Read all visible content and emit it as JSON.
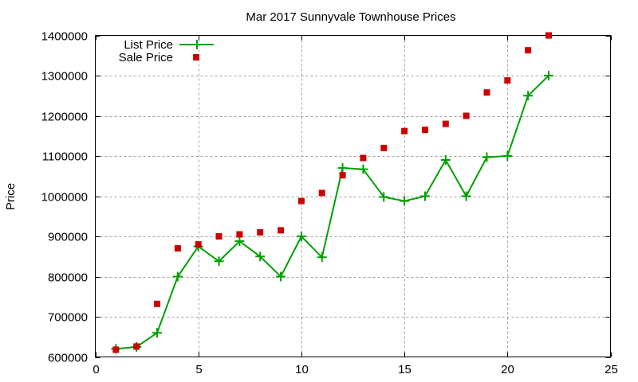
{
  "chart_data": {
    "type": "line",
    "title": "Mar 2017 Sunnyvale Townhouse Prices",
    "xlabel": "",
    "ylabel": "Price",
    "xlim": [
      0,
      25
    ],
    "ylim": [
      600000,
      1400000
    ],
    "x_ticks": [
      0,
      5,
      10,
      15,
      20,
      25
    ],
    "y_ticks": [
      600000,
      700000,
      800000,
      900000,
      1000000,
      1100000,
      1200000,
      1300000,
      1400000
    ],
    "grid": true,
    "legend_position": "top-left",
    "x": [
      1,
      2,
      3,
      4,
      5,
      6,
      7,
      8,
      9,
      10,
      11,
      12,
      13,
      14,
      15,
      16,
      17,
      18,
      19,
      20,
      21,
      22
    ],
    "series": [
      {
        "name": "List Price",
        "style": "linespoints",
        "marker": "plus",
        "color": "#00a000",
        "values": [
          620000,
          625000,
          660000,
          800000,
          875000,
          838000,
          888000,
          850000,
          800000,
          900000,
          848000,
          1070000,
          1067000,
          998000,
          988000,
          1000000,
          1090000,
          1000000,
          1097000,
          1100000,
          1250000,
          1300000
        ]
      },
      {
        "name": "Sale Price",
        "style": "points",
        "marker": "square",
        "color": "#cc0000",
        "values": [
          618000,
          626000,
          732000,
          870000,
          880000,
          900000,
          905000,
          910000,
          915000,
          988000,
          1008000,
          1052000,
          1095000,
          1120000,
          1162000,
          1165000,
          1180000,
          1200000,
          1258000,
          1288000,
          1363000,
          1400000
        ]
      }
    ]
  }
}
